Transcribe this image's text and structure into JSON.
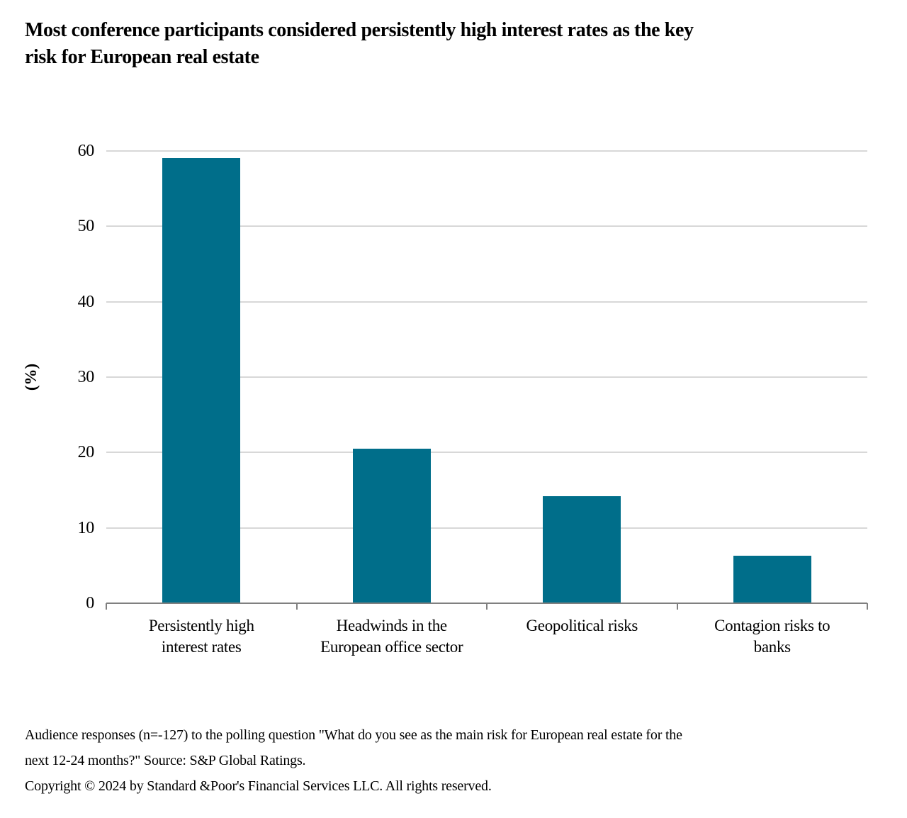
{
  "header": {
    "title_line1": "Most conference participants considered persistently high interest rates as the key",
    "title_line2": "risk for European real estate"
  },
  "footnote": {
    "note_line1": "Audience responses (n=-127) to the polling question \"What do you see as the main risk for European real estate for the",
    "note_line2": "next 12-24 months?\" Source: S&P Global Ratings.",
    "copyright": "Copyright © 2024 by Standard &Poor's Financial Services LLC. All rights reserved."
  },
  "colors": {
    "bar": "#006E8A",
    "gridline": "#D8D8D8",
    "axis": "#808080",
    "text": "#000000"
  },
  "chart_data": {
    "type": "bar",
    "title": "Most conference participants considered persistently high interest rates as the key risk for European real estate",
    "categories": [
      "Persistently high interest rates",
      "Headwinds in the European office sector",
      "Geopolitical risks",
      "Contagion risks to banks"
    ],
    "category_label_lines": [
      [
        "Persistently high",
        "interest rates"
      ],
      [
        "Headwinds in the",
        "European office sector"
      ],
      [
        "Geopolitical risks"
      ],
      [
        "Contagion risks to",
        "banks"
      ]
    ],
    "values": [
      59.1,
      20.5,
      14.2,
      6.3
    ],
    "xlabel": "",
    "ylabel": "(%)",
    "yticks": [
      0,
      10,
      20,
      30,
      40,
      50,
      60
    ],
    "ylim": [
      0,
      60
    ],
    "grid": true,
    "legend": "none"
  }
}
